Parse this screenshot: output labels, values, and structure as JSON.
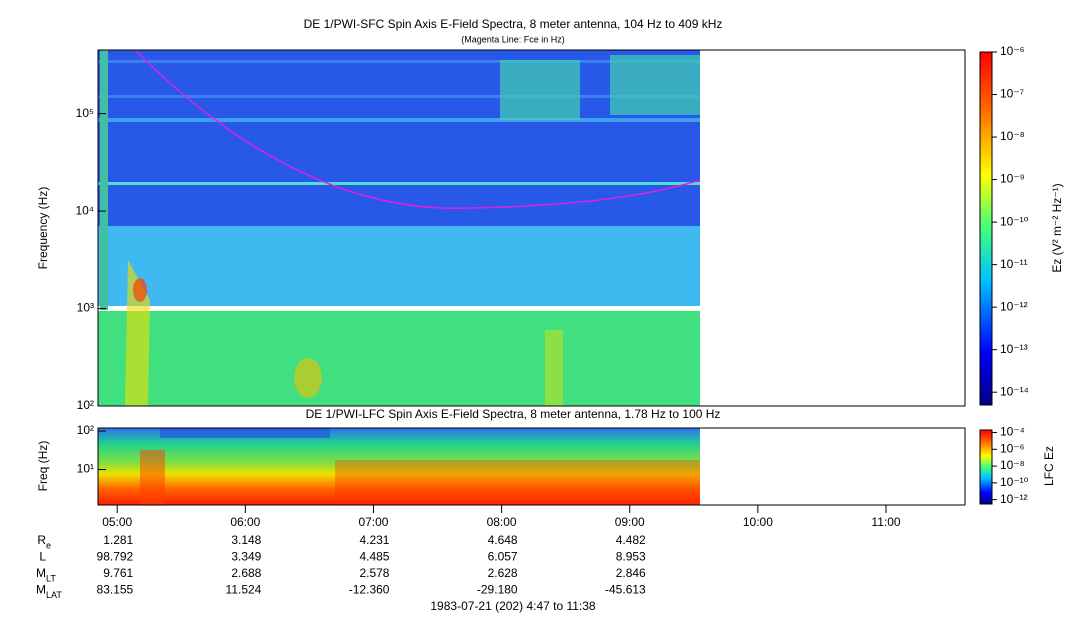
{
  "chart_data": [
    {
      "type": "spectrogram",
      "title": "DE 1/PWI-SFC  Spin Axis E-Field Spectra, 8 meter antenna, 104 Hz to 409 kHz",
      "subtitle": "(Magenta Line: Fce in Hz)",
      "y_label": "Frequency (Hz)",
      "log_y": true,
      "ylim": [
        100,
        450000
      ],
      "yticks": [
        {
          "value": 100,
          "label": "10²"
        },
        {
          "value": 1000,
          "label": "10³"
        },
        {
          "value": 10000,
          "label": "10⁴"
        },
        {
          "value": 100000,
          "label": "10⁵"
        }
      ],
      "colorbar_label": "Ez (V² m⁻² Hz⁻¹)",
      "clim": [
        5e-15,
        1e-06
      ],
      "cticks": [
        {
          "value": 1e-06,
          "label": "10⁻⁶"
        },
        {
          "value": 1e-07,
          "label": "10⁻⁷"
        },
        {
          "value": 1e-08,
          "label": "10⁻⁸"
        },
        {
          "value": 1e-09,
          "label": "10⁻⁹"
        },
        {
          "value": 1e-10,
          "label": "10⁻¹⁰"
        },
        {
          "value": 1e-11,
          "label": "10⁻¹¹"
        },
        {
          "value": 1e-12,
          "label": "10⁻¹²"
        },
        {
          "value": 1e-13,
          "label": "10⁻¹³"
        },
        {
          "value": 1e-14,
          "label": "10⁻¹⁴"
        }
      ]
    },
    {
      "type": "spectrogram",
      "title": "DE 1/PWI-LFC  Spin Axis E-Field Spectra, 8 meter antenna, 1.78 Hz to 100 Hz",
      "y_label": "Freq (Hz)",
      "log_y": true,
      "ylim": [
        1.2,
        120
      ],
      "yticks": [
        {
          "value": 10,
          "label": "10¹"
        },
        {
          "value": 100,
          "label": "10²"
        }
      ],
      "colorbar_label": "LFC Ez",
      "clim": [
        3e-13,
        0.0002
      ],
      "cticks": [
        {
          "value": 0.0001,
          "label": "10⁻⁴"
        },
        {
          "value": 1e-06,
          "label": "10⁻⁶"
        },
        {
          "value": 1e-08,
          "label": "10⁻⁸"
        },
        {
          "value": 1e-10,
          "label": "10⁻¹⁰"
        },
        {
          "value": 1e-12,
          "label": "10⁻¹²"
        }
      ],
      "xlim": [
        291,
        697
      ],
      "xticks": [
        {
          "value": 300,
          "label": "05:00"
        },
        {
          "value": 360,
          "label": "06:00"
        },
        {
          "value": 420,
          "label": "07:00"
        },
        {
          "value": 480,
          "label": "08:00"
        },
        {
          "value": 540,
          "label": "09:00"
        },
        {
          "value": 600,
          "label": "10:00"
        },
        {
          "value": 660,
          "label": "11:00"
        }
      ]
    }
  ],
  "ephemeris": {
    "rows": [
      {
        "label": "R",
        "sub": "e",
        "values": [
          "1.281",
          "3.148",
          "4.231",
          "4.648",
          "4.482"
        ]
      },
      {
        "label": "L",
        "sub": "",
        "values": [
          "98.792",
          "3.349",
          "4.485",
          "6.057",
          "8.953"
        ]
      },
      {
        "label": "M",
        "sub": "LT",
        "values": [
          "9.761",
          "2.688",
          "2.578",
          "2.628",
          "2.846"
        ]
      },
      {
        "label": "M",
        "sub": "LAT",
        "values": [
          "83.155",
          "11.524",
          "-12.360",
          "-29.180",
          "-45.613"
        ]
      }
    ]
  },
  "footer": "1983-07-21 (202) 4:47 to 11:38"
}
